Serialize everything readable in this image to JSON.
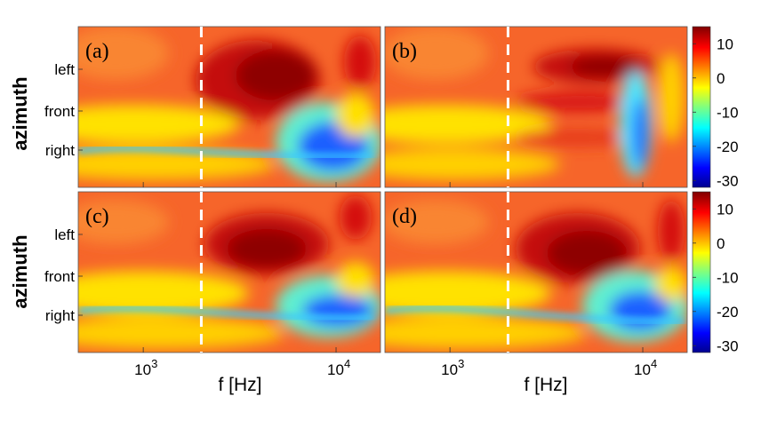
{
  "chart_data": {
    "type": "heatmap",
    "layout": "2x2 panels",
    "panels": [
      {
        "id": "a",
        "label": "(a)"
      },
      {
        "id": "b",
        "label": "(b)"
      },
      {
        "id": "c",
        "label": "(c)"
      },
      {
        "id": "d",
        "label": "(d)"
      }
    ],
    "xlabel": "f [Hz]",
    "x_scale": "log",
    "x_ticks": [
      {
        "value": 1000,
        "base": "10",
        "exp": "3"
      },
      {
        "value": 10000,
        "base": "10",
        "exp": "4"
      }
    ],
    "ylabel": "azimuth",
    "y_ticks": [
      "left",
      "front",
      "right"
    ],
    "reference_line": {
      "style": "dashed",
      "color": "#ffffff",
      "x_value": 2000
    },
    "colorbar": {
      "ticks": [
        "10",
        "0",
        "-10",
        "-20",
        "-30"
      ],
      "range": [
        -32,
        15
      ],
      "colormap": "jet"
    }
  }
}
